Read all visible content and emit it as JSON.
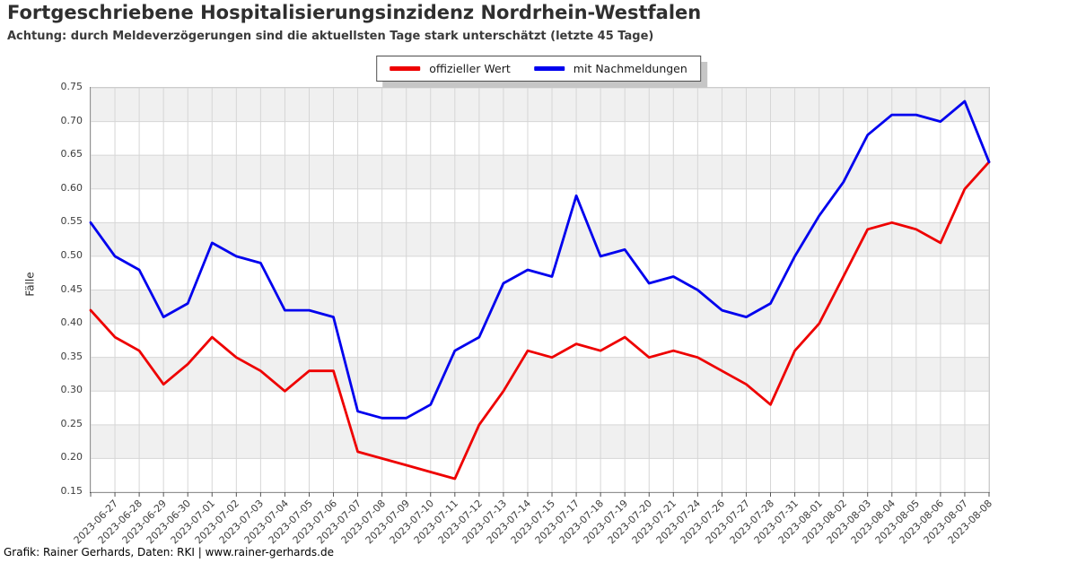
{
  "title": "Fortgeschriebene Hospitalisierungsinzidenz Nordrhein-Westfalen",
  "subtitle": "Achtung: durch Meldeverzögerungen sind die aktuellsten Tage stark unterschätzt (letzte 45 Tage)",
  "footer": "Grafik: Rainer Gerhards, Daten: RKI | www.rainer-gerhards.de",
  "colors": {
    "official": "#ee0000",
    "nachmeldungen": "#0000ee",
    "band_gray": "#f0f0f0",
    "gridline": "#d6d6d6",
    "legend_shadow": "#c6c6c6"
  },
  "chart_data": {
    "type": "line",
    "title": "Fortgeschriebene Hospitalisierungsinzidenz Nordrhein-Westfalen",
    "xlabel": "",
    "ylabel": "Fälle",
    "ylim": [
      0.15,
      0.75
    ],
    "y_ticks": [
      "0.15",
      "0.20",
      "0.25",
      "0.30",
      "0.35",
      "0.40",
      "0.45",
      "0.50",
      "0.55",
      "0.60",
      "0.65",
      "0.70",
      "0.75"
    ],
    "grid": true,
    "legend_position": "top-center",
    "categories": [
      "",
      "2023-06-27",
      "2023-06-28",
      "2023-06-29",
      "2023-06-30",
      "2023-07-01",
      "2023-07-02",
      "2023-07-03",
      "2023-07-04",
      "2023-07-05",
      "2023-07-06",
      "2023-07-07",
      "2023-07-08",
      "2023-07-09",
      "2023-07-10",
      "2023-07-11",
      "2023-07-12",
      "2023-07-13",
      "2023-07-14",
      "2023-07-15",
      "2023-07-17",
      "2023-07-18",
      "2023-07-19",
      "2023-07-20",
      "2023-07-21",
      "2023-07-24",
      "2023-07-26",
      "2023-07-27",
      "2023-07-28",
      "2023-07-31",
      "2023-08-01",
      "2023-08-02",
      "2023-08-03",
      "2023-08-04",
      "2023-08-05",
      "2023-08-06",
      "2023-08-07",
      "2023-08-08"
    ],
    "series": [
      {
        "name": "offizieller Wert",
        "color": "#ee0000",
        "values": [
          0.42,
          0.38,
          0.36,
          0.31,
          0.34,
          0.38,
          0.35,
          0.33,
          0.3,
          0.33,
          0.33,
          0.21,
          0.2,
          0.19,
          0.18,
          0.17,
          0.25,
          0.3,
          0.36,
          0.35,
          0.37,
          0.36,
          0.38,
          0.35,
          0.36,
          0.35,
          0.33,
          0.31,
          0.28,
          0.36,
          0.4,
          0.47,
          0.54,
          0.55,
          0.54,
          0.52,
          0.6,
          0.64
        ]
      },
      {
        "name": "mit Nachmeldungen",
        "color": "#0000ee",
        "values": [
          0.55,
          0.5,
          0.48,
          0.41,
          0.43,
          0.52,
          0.5,
          0.49,
          0.42,
          0.42,
          0.41,
          0.27,
          0.26,
          0.26,
          0.28,
          0.36,
          0.38,
          0.46,
          0.48,
          0.47,
          0.59,
          0.5,
          0.51,
          0.46,
          0.47,
          0.45,
          0.42,
          0.41,
          0.43,
          0.5,
          0.56,
          0.61,
          0.68,
          0.71,
          0.71,
          0.7,
          0.73,
          0.64
        ]
      }
    ]
  }
}
